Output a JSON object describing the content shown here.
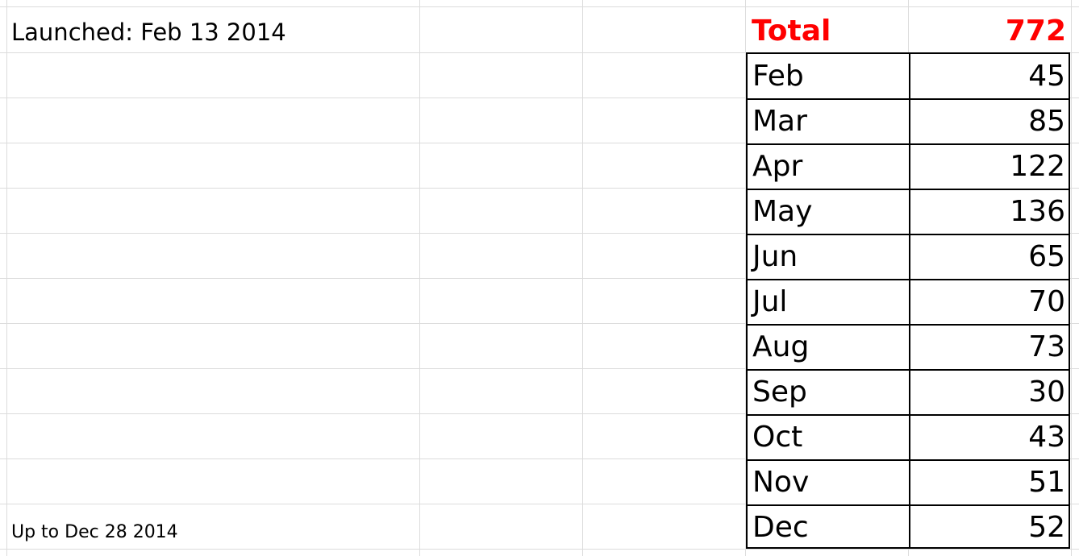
{
  "spreadsheet": {
    "launched_text": "Launched: Feb 13 2014",
    "up_to_text": "Up to Dec 28 2014",
    "total_label": "Total",
    "total_value": "772",
    "accent_color": "#ff0000",
    "rows": [
      {
        "month": "Feb",
        "count": "45"
      },
      {
        "month": "Mar",
        "count": "85"
      },
      {
        "month": "Apr",
        "count": "122"
      },
      {
        "month": "May",
        "count": "136"
      },
      {
        "month": "Jun",
        "count": "65"
      },
      {
        "month": "Jul",
        "count": "70"
      },
      {
        "month": "Aug",
        "count": "73"
      },
      {
        "month": "Sep",
        "count": "30"
      },
      {
        "month": "Oct",
        "count": "43"
      },
      {
        "month": "Nov",
        "count": "51"
      },
      {
        "month": "Dec",
        "count": "52"
      }
    ]
  }
}
